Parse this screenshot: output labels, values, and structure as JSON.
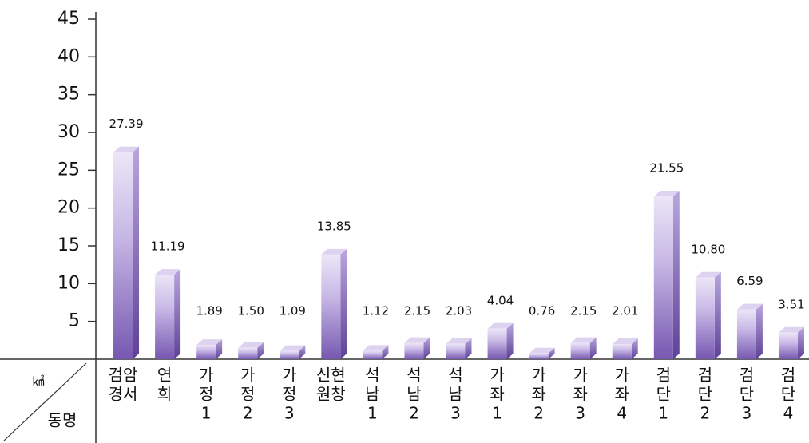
{
  "chart_data": {
    "type": "bar",
    "categories": [
      [
        "검암",
        "경서"
      ],
      [
        "연",
        "희"
      ],
      [
        "가",
        "정",
        "1"
      ],
      [
        "가",
        "정",
        "2"
      ],
      [
        "가",
        "정",
        "3"
      ],
      [
        "신현",
        "원창"
      ],
      [
        "석",
        "남",
        "1"
      ],
      [
        "석",
        "남",
        "2"
      ],
      [
        "석",
        "남",
        "3"
      ],
      [
        "가",
        "좌",
        "1"
      ],
      [
        "가",
        "좌",
        "2"
      ],
      [
        "가",
        "좌",
        "3"
      ],
      [
        "가",
        "좌",
        "4"
      ],
      [
        "검",
        "단",
        "1"
      ],
      [
        "검",
        "단",
        "2"
      ],
      [
        "검",
        "단",
        "3"
      ],
      [
        "검",
        "단",
        "4"
      ]
    ],
    "values": [
      27.39,
      11.19,
      1.89,
      1.5,
      1.09,
      13.85,
      1.12,
      2.15,
      2.03,
      4.04,
      0.76,
      2.15,
      2.01,
      21.55,
      10.8,
      6.59,
      3.51
    ],
    "value_labels": [
      "27.39",
      "11.19",
      "1.89",
      "1.50",
      "1.09",
      "13.85",
      "1.12",
      "2.15",
      "2.03",
      "4.04",
      "0.76",
      "2.15",
      "2.01",
      "21.55",
      "10.80",
      "6.59",
      "3.51"
    ],
    "color": "#8a70c0",
    "ylim": [
      0,
      45
    ],
    "yticks": [
      5,
      10,
      15,
      20,
      25,
      30,
      35,
      40,
      45
    ],
    "unit": "㎢",
    "x_label": "동명"
  }
}
